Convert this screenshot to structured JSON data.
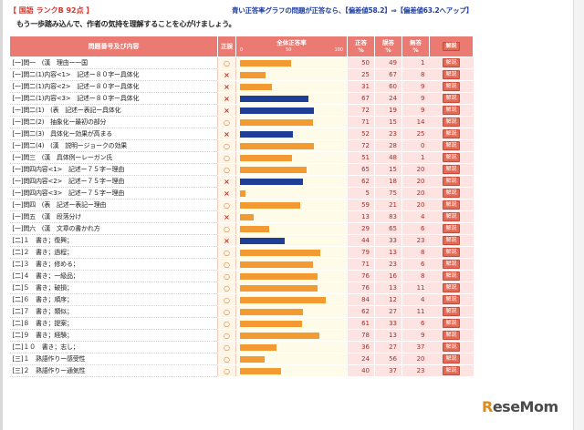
{
  "header": {
    "rank_text": "【 国語 ランクB 92点 】",
    "blue_note": "青い正答率グラフの問題が正答なら、【偏差値58.2】⇒【偏差値63.2へアップ】",
    "subtitle": "もう一歩踏み込んで、作者の気持を理解することを心がけましょう。"
  },
  "table": {
    "headers": {
      "item": "問題番号及び内容",
      "mark": "正誤",
      "rate": "全体正答率",
      "correct": "正答\n%",
      "wrong": "誤答\n%",
      "blank": "無答\n%",
      "explain": "解説"
    },
    "scale": [
      "0",
      "50",
      "100"
    ],
    "rows": [
      {
        "label": "[一]問一　(漢　理由ー一国",
        "mark": "○",
        "color": "orange",
        "c": 50,
        "w": 49,
        "b": 1
      },
      {
        "label": "[一]問二(1)内容<1>　記述ー８０字ー具体化",
        "mark": "×",
        "color": "orange",
        "c": 25,
        "w": 67,
        "b": 8
      },
      {
        "label": "[一]問二(1)内容<2>　記述ー８０字ー具体化",
        "mark": "×",
        "color": "orange",
        "c": 31,
        "w": 60,
        "b": 9
      },
      {
        "label": "[一]問二(1)内容<3>　記述ー８０字ー具体化",
        "mark": "×",
        "color": "blue",
        "c": 67,
        "w": 24,
        "b": 9
      },
      {
        "label": "[一]問二(1)　(表　記述ー表記ー具体化",
        "mark": "×",
        "color": "blue",
        "c": 72,
        "w": 19,
        "b": 9
      },
      {
        "label": "[一]問二(2)　抽象化ー最初の部分",
        "mark": "○",
        "color": "orange",
        "c": 71,
        "w": 15,
        "b": 14
      },
      {
        "label": "[一]問二(3)　具体化ー効果が高まる",
        "mark": "×",
        "color": "blue",
        "c": 52,
        "w": 23,
        "b": 25
      },
      {
        "label": "[一]問二(4)　(漢　説明ージョークの効果",
        "mark": "○",
        "color": "orange",
        "c": 72,
        "w": 28,
        "b": 0
      },
      {
        "label": "[一]問三　(漢　具体例ーレーガン氏",
        "mark": "○",
        "color": "orange",
        "c": 51,
        "w": 48,
        "b": 1
      },
      {
        "label": "[一]問四内容<1>　記述ー７５字ー理由",
        "mark": "○",
        "color": "orange",
        "c": 65,
        "w": 15,
        "b": 20
      },
      {
        "label": "[一]問四内容<2>　記述ー７５字ー理由",
        "mark": "×",
        "color": "blue",
        "c": 62,
        "w": 18,
        "b": 20
      },
      {
        "label": "[一]問四内容<3>　記述ー７５字ー理由",
        "mark": "×",
        "color": "orange",
        "c": 5,
        "w": 75,
        "b": 20
      },
      {
        "label": "[一]問四　(表　記述ー表記ー理由",
        "mark": "○",
        "color": "orange",
        "c": 59,
        "w": 21,
        "b": 20
      },
      {
        "label": "[一]問五　(漢　段落分け",
        "mark": "×",
        "color": "orange",
        "c": 13,
        "w": 83,
        "b": 4
      },
      {
        "label": "[一]問六　(漢　文章の書かれ方",
        "mark": "○",
        "color": "orange",
        "c": 29,
        "w": 65,
        "b": 6
      },
      {
        "label": "[二]１　書き；復興；",
        "mark": "×",
        "color": "blue",
        "c": 44,
        "w": 33,
        "b": 23
      },
      {
        "label": "[二]２　書き；過程；",
        "mark": "○",
        "color": "orange",
        "c": 79,
        "w": 13,
        "b": 8
      },
      {
        "label": "[二]３　書き；修める；",
        "mark": "○",
        "color": "orange",
        "c": 71,
        "w": 23,
        "b": 6
      },
      {
        "label": "[二]４　書き；一級品；",
        "mark": "○",
        "color": "orange",
        "c": 76,
        "w": 16,
        "b": 8
      },
      {
        "label": "[二]５　書き；破損；",
        "mark": "○",
        "color": "orange",
        "c": 76,
        "w": 13,
        "b": 11
      },
      {
        "label": "[二]６　書き；順序；",
        "mark": "○",
        "color": "orange",
        "c": 84,
        "w": 12,
        "b": 4
      },
      {
        "label": "[二]７　書き；類似；",
        "mark": "○",
        "color": "orange",
        "c": 62,
        "w": 27,
        "b": 11
      },
      {
        "label": "[二]８　書き；提案；",
        "mark": "○",
        "color": "orange",
        "c": 61,
        "w": 33,
        "b": 6
      },
      {
        "label": "[二]９　書き；経験；",
        "mark": "○",
        "color": "orange",
        "c": 78,
        "w": 13,
        "b": 9
      },
      {
        "label": "[二]１０　書き；志し；",
        "mark": "○",
        "color": "orange",
        "c": 36,
        "w": 27,
        "b": 37
      },
      {
        "label": "[三]１　熟語作りー感受性",
        "mark": "○",
        "color": "orange",
        "c": 24,
        "w": 56,
        "b": 20
      },
      {
        "label": "[三]２　熟語作りー通気性",
        "mark": "○",
        "color": "orange",
        "c": 40,
        "w": 37,
        "b": 23
      }
    ]
  },
  "logo": {
    "main": "ReseMom",
    "accent_index": 0
  },
  "colors": {
    "bar_orange": "#f39a33",
    "bar_blue": "#1e3f95",
    "header_red": "#ea7a72",
    "mark_wrong": "#cc2a1f",
    "mark_right": "#e07a2a"
  }
}
